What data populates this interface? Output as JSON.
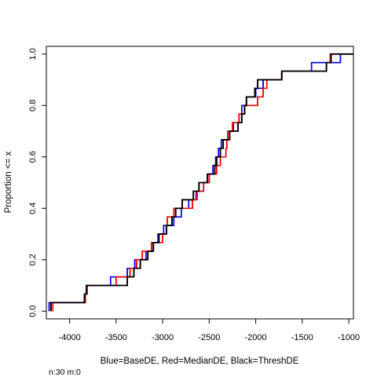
{
  "chart_data": {
    "type": "line",
    "subtype": "ecdf-step",
    "xlabel": "Blue=BaseDE, Red=MedianDE, Black=ThreshDE",
    "ylabel": "Proportion <= x",
    "note": "n:30 m:0",
    "xlim": [
      -4250,
      -950
    ],
    "ylim": [
      -0.03,
      1.03
    ],
    "x_ticks": [
      -4000,
      -3500,
      -3000,
      -2500,
      -2000,
      -1500,
      -1000
    ],
    "x_tick_labels": [
      "-4000",
      "-3500",
      "-3000",
      "-2500",
      "-2000",
      "-1500",
      "-1000"
    ],
    "y_ticks": [
      0.0,
      0.2,
      0.4,
      0.6,
      0.8,
      1.0
    ],
    "y_tick_labels": [
      "0.0",
      "0.2",
      "0.4",
      "0.6",
      "0.8",
      "1.0"
    ],
    "grid": false,
    "legend": "none",
    "series": [
      {
        "color": "#0000ff",
        "x": [
          -4220,
          -3840,
          -3820,
          -3560,
          -3380,
          -3300,
          -3180,
          -3120,
          -3050,
          -2990,
          -2880,
          -2800,
          -2720,
          -2640,
          -2560,
          -2500,
          -2460,
          -2430,
          -2400,
          -2370,
          -2300,
          -2240,
          -2180,
          -2150,
          -2100,
          -2000,
          -1920,
          -1720,
          -1400,
          -1090
        ],
        "y_end": 1.0
      },
      {
        "color": "#ff0000",
        "x": [
          -4180,
          -3830,
          -3810,
          -3500,
          -3350,
          -3280,
          -3220,
          -3120,
          -3000,
          -2960,
          -2950,
          -2880,
          -2680,
          -2630,
          -2560,
          -2500,
          -2420,
          -2380,
          -2320,
          -2310,
          -2300,
          -2250,
          -2180,
          -2120,
          -1980,
          -1920,
          -1880,
          -1720,
          -1240,
          -1200
        ],
        "y_end": 1.0
      },
      {
        "color": "#000000",
        "x": [
          -4200,
          -3840,
          -3820,
          -3380,
          -3310,
          -3240,
          -3160,
          -3100,
          -3040,
          -2960,
          -2900,
          -2860,
          -2790,
          -2670,
          -2610,
          -2520,
          -2440,
          -2420,
          -2380,
          -2350,
          -2280,
          -2190,
          -2150,
          -2120,
          -2100,
          -2010,
          -1980,
          -1720,
          -1240,
          -1190
        ],
        "y_end": 1.0
      }
    ]
  }
}
